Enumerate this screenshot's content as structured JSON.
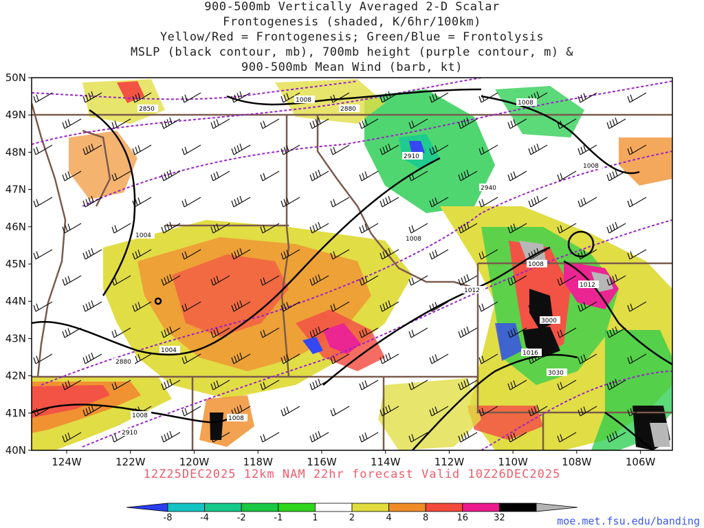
{
  "header": {
    "title_lines": [
      "900-500mb Vertically Averaged 2-D Scalar",
      "Frontogenesis (shaded, K/6hr/100km)",
      "Yellow/Red = Frontogenesis;  Green/Blue = Frontolysis",
      "MSLP (black contour, mb), 700mb height (purple contour, m) &",
      "900-500mb Mean Wind (barb, kt)"
    ]
  },
  "map": {
    "lat_labels": [
      "50N",
      "49N",
      "48N",
      "47N",
      "46N",
      "45N",
      "44N",
      "43N",
      "42N",
      "41N",
      "40N"
    ],
    "lon_labels": [
      "124W",
      "122W",
      "120W",
      "118W",
      "116W",
      "114W",
      "112W",
      "110W",
      "108W",
      "106W"
    ],
    "lon_range": [
      -125.1,
      -105.0
    ],
    "lat_range": [
      40,
      50
    ],
    "mslp_labels": [
      "1004",
      "1008",
      "1004",
      "1008",
      "1004",
      "1008",
      "1008",
      "1008",
      "1012",
      "1012",
      "1008",
      "1016",
      "1008"
    ],
    "height_labels": [
      "2850",
      "2880",
      "2910",
      "2940",
      "2880",
      "2910",
      "3000",
      "3030"
    ],
    "colors": {
      "mslp_contour": "#000000",
      "height_contour": "#9a22c8",
      "borders": "#7a5a4c",
      "wind_barbs": "#111111"
    }
  },
  "run_info": "12Z25DEC2025 12km NAM 22hr forecast Valid 10Z26DEC2025",
  "colorbar": {
    "tick_labels": [
      "-8",
      "-4",
      "-2",
      "-1",
      "1",
      "2",
      "4",
      "8",
      "16",
      "32"
    ],
    "colors": [
      "#2a3ef0",
      "#14c3c3",
      "#14c98a",
      "#19c943",
      "#2ed51c",
      "#ffffff",
      "#e0dc3c",
      "#f08c28",
      "#f24a3c",
      "#ea1a8c",
      "#000000",
      "#b4b4b4"
    ]
  },
  "footer": {
    "url": "moe.met.fsu.edu/banding"
  }
}
